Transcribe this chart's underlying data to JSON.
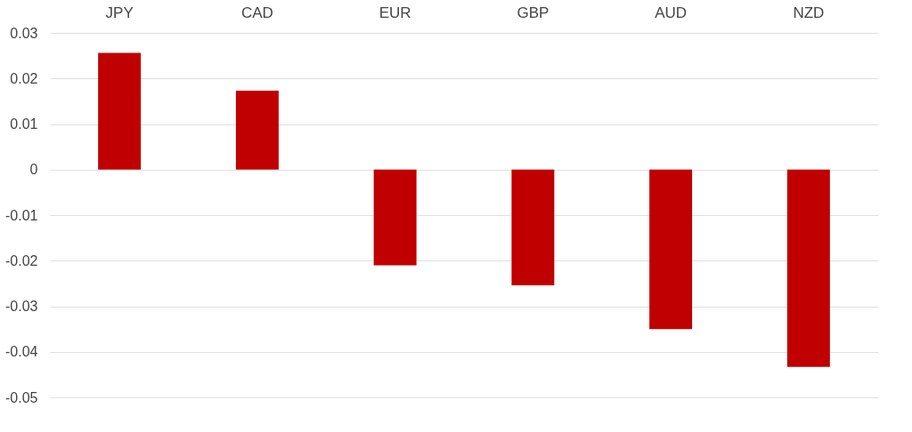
{
  "chart_data": {
    "type": "bar",
    "categories": [
      "JPY",
      "CAD",
      "EUR",
      "GBP",
      "AUD",
      "NZD"
    ],
    "values": [
      0.0256,
      0.0173,
      -0.021,
      -0.0254,
      -0.035,
      -0.0433
    ],
    "color": "#c00000",
    "ylim": [
      -0.05,
      0.03
    ],
    "yticks": [
      -0.05,
      -0.04,
      -0.03,
      -0.02,
      -0.01,
      0,
      0.01,
      0.02,
      0.03
    ],
    "grid": "y"
  }
}
